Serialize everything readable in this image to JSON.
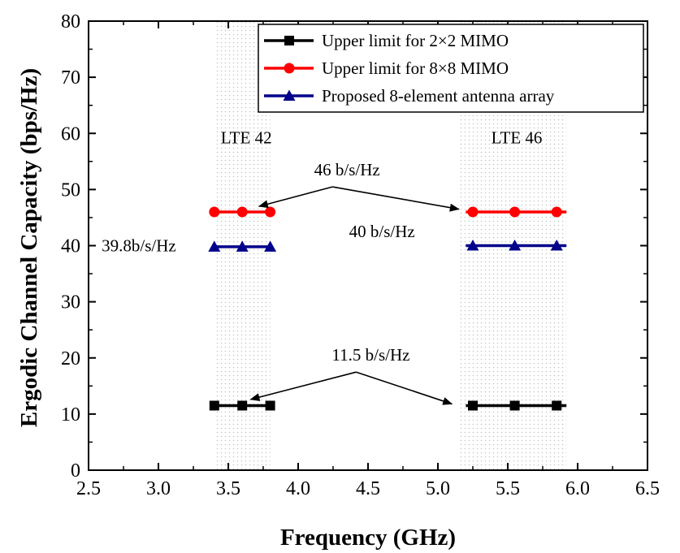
{
  "chart_data": {
    "type": "line",
    "xlabel": "Frequency (GHz)",
    "ylabel": "Ergodic Channel Capacity (bps/Hz)",
    "xlim": [
      2.5,
      6.5
    ],
    "ylim": [
      0,
      80
    ],
    "x_ticks": [
      "2.5",
      "3.0",
      "3.5",
      "4.0",
      "4.5",
      "5.0",
      "5.5",
      "6.0",
      "6.5"
    ],
    "y_ticks": [
      "0",
      "10",
      "20",
      "30",
      "40",
      "50",
      "60",
      "70",
      "80"
    ],
    "grid": false,
    "legend_position": "top-right",
    "series": [
      {
        "name": "Upper limit for 2×2 MIMO",
        "color": "#000000",
        "marker": "square",
        "segments": [
          [
            [
              3.4,
              11.5
            ],
            [
              3.6,
              11.5
            ],
            [
              3.8,
              11.5
            ]
          ],
          [
            [
              5.25,
              11.5
            ],
            [
              5.55,
              11.5
            ],
            [
              5.85,
              11.5
            ]
          ]
        ],
        "segment_x_ranges": [
          [
            3.4,
            3.8
          ],
          [
            5.2,
            5.92
          ]
        ]
      },
      {
        "name": "Upper limit for 8×8 MIMO",
        "color": "#ff0000",
        "marker": "circle",
        "segments": [
          [
            [
              3.4,
              46
            ],
            [
              3.6,
              46
            ],
            [
              3.8,
              46
            ]
          ],
          [
            [
              5.25,
              46
            ],
            [
              5.55,
              46
            ],
            [
              5.85,
              46
            ]
          ]
        ],
        "segment_x_ranges": [
          [
            3.4,
            3.8
          ],
          [
            5.2,
            5.92
          ]
        ]
      },
      {
        "name": "Proposed 8-element antenna array",
        "color": "#00008b",
        "marker": "triangle",
        "segments": [
          [
            [
              3.4,
              39.8
            ],
            [
              3.6,
              39.8
            ],
            [
              3.8,
              39.8
            ]
          ],
          [
            [
              5.25,
              40
            ],
            [
              5.55,
              40
            ],
            [
              5.85,
              40
            ]
          ]
        ],
        "segment_x_ranges": [
          [
            3.4,
            3.8
          ],
          [
            5.2,
            5.92
          ]
        ]
      }
    ],
    "bands": [
      {
        "label": "LTE 42",
        "x_range": [
          3.4,
          3.8
        ]
      },
      {
        "label": "LTE 46",
        "x_range": [
          5.15,
          5.92
        ]
      }
    ],
    "annotations": [
      {
        "text": "46 b/s/Hz",
        "x": 4.35,
        "y": 52.5,
        "arrows_to": [
          [
            3.72,
            47.0
          ],
          [
            5.15,
            46.5
          ]
        ]
      },
      {
        "text": "39.8b/s/Hz",
        "x": 2.86,
        "y": 39.0
      },
      {
        "text": "40 b/s/Hz",
        "x": 4.6,
        "y": 41.5
      },
      {
        "text": "11.5 b/s/Hz",
        "x": 4.52,
        "y": 19.5,
        "arrows_to": [
          [
            3.66,
            12.6
          ],
          [
            5.1,
            11.8
          ]
        ]
      }
    ]
  }
}
